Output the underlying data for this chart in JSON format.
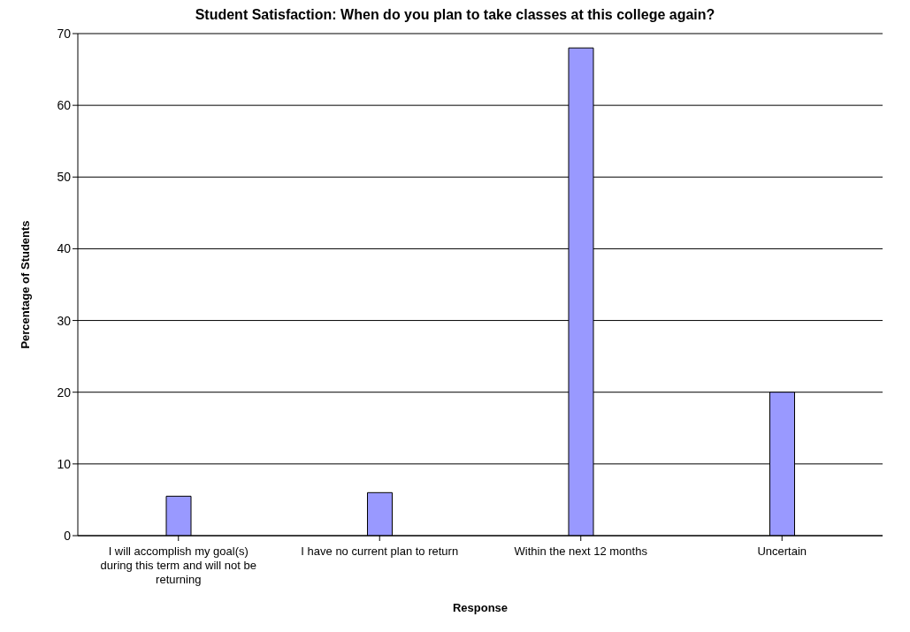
{
  "chart_data": {
    "type": "bar",
    "title": "Student Satisfaction: When do you plan to take classes at this college again?",
    "xlabel": "Response",
    "ylabel": "Percentage of Students",
    "categories": [
      "I will accomplish my goal(s) during this term and will not be returning",
      "I have no current plan to return",
      "Within the next 12 months",
      "Uncertain"
    ],
    "values": [
      5.5,
      6,
      68,
      20
    ],
    "color": "#9999ff",
    "ylim": [
      0,
      70
    ],
    "yticks": [
      0,
      10,
      20,
      30,
      40,
      50,
      60,
      70
    ],
    "grid": "y"
  }
}
